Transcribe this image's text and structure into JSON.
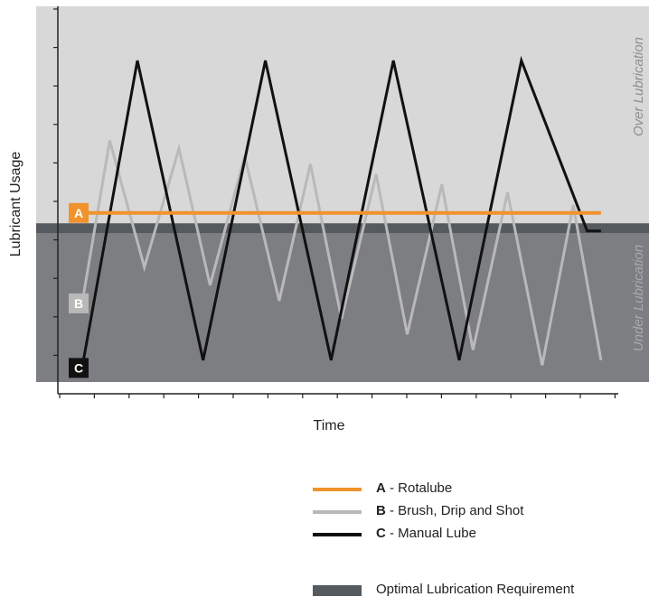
{
  "chart_data": {
    "type": "line",
    "xlabel": "Time",
    "ylabel": "Lubricant Usage",
    "zones": {
      "over": "Over Lubrication",
      "under": "Under Lubrication"
    },
    "optimal_label": "Optimal Lubrication Requirement",
    "series": [
      {
        "key": "A",
        "name": "Rotalube",
        "label": "A - Rotalube",
        "color": "#f0932b",
        "x": [
          0.0,
          15.0
        ],
        "y": [
          6.0,
          6.0
        ]
      },
      {
        "key": "B",
        "name": "Brush, Drip and Shot",
        "label": "B - Brush, Drip and Shot",
        "color": "#b9b9b9",
        "x": [
          0.0,
          0.8,
          1.8,
          2.8,
          3.7,
          4.7,
          5.7,
          6.6,
          7.5,
          8.5,
          9.4,
          10.4,
          11.3,
          12.3,
          13.3,
          14.2,
          15.0
        ],
        "y": [
          2.5,
          8.8,
          3.9,
          8.5,
          3.2,
          8.2,
          2.6,
          7.9,
          1.9,
          7.5,
          1.3,
          7.1,
          0.7,
          6.8,
          0.1,
          6.3,
          0.3
        ]
      },
      {
        "key": "C",
        "name": "Manual Lube",
        "label": "C - Manual Lube",
        "color": "#111111",
        "x": [
          0.0,
          1.6,
          3.5,
          5.3,
          7.2,
          9.0,
          10.9,
          12.7,
          14.6,
          15.0
        ],
        "y": [
          0.0,
          11.9,
          0.3,
          11.9,
          0.3,
          11.9,
          0.3,
          11.9,
          5.3,
          5.3
        ]
      }
    ],
    "ylim": [
      -1,
      14
    ],
    "xlim": [
      -0.7,
      15.5
    ],
    "optimal_band": [
      5.2,
      5.6
    ],
    "grid": false
  }
}
